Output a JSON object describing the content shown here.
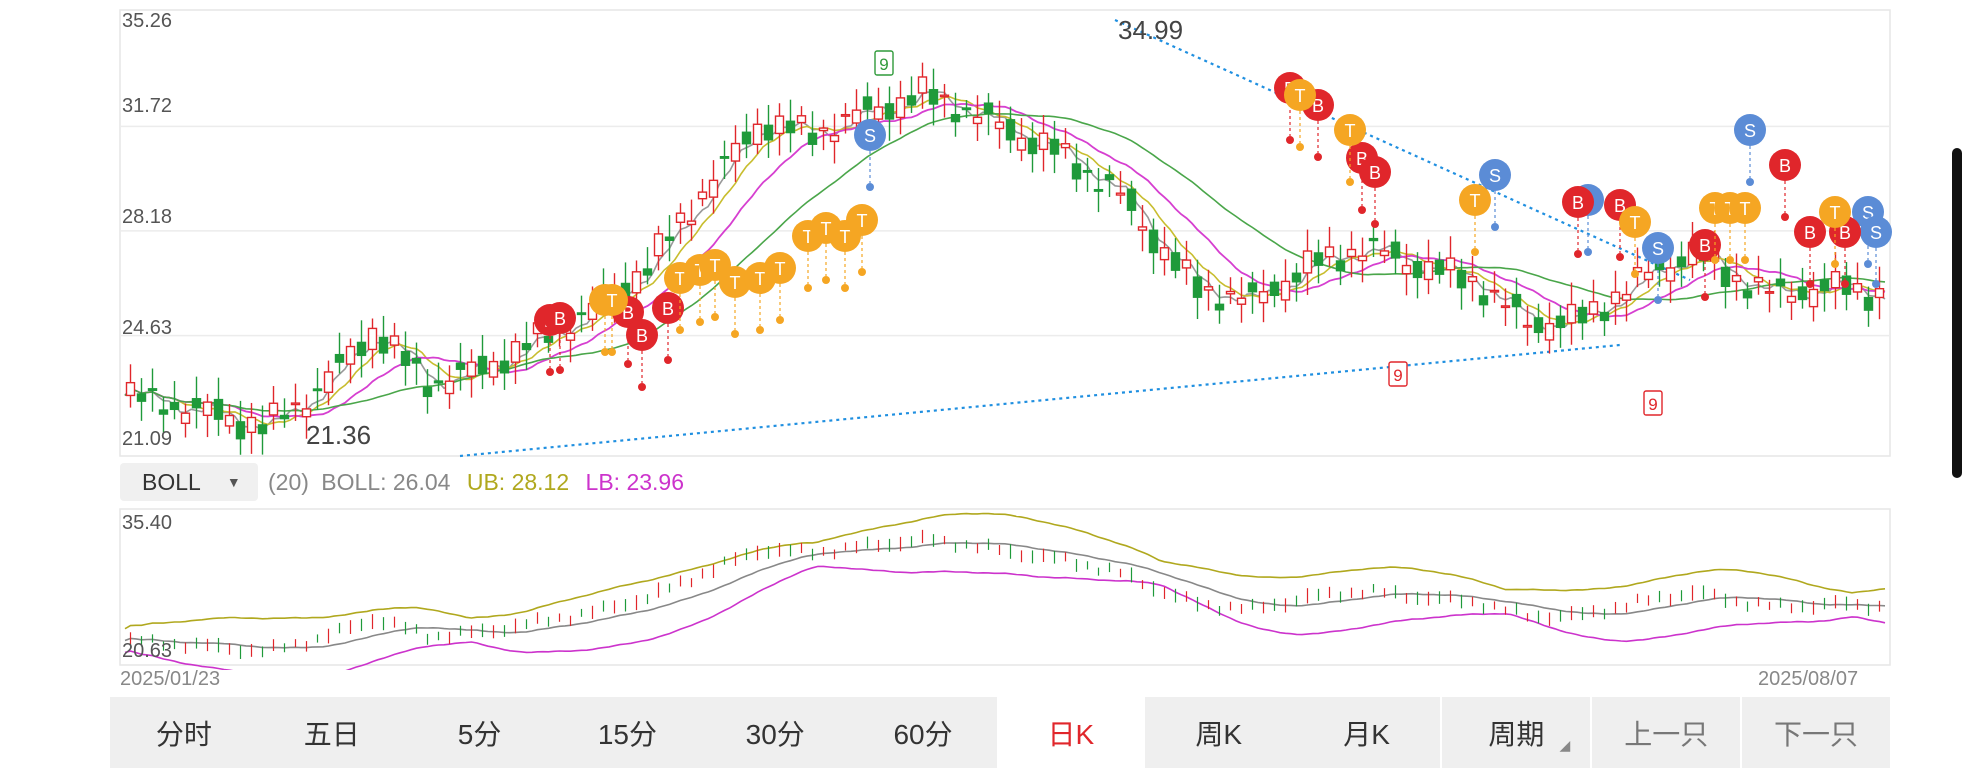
{
  "main_chart": {
    "y_ticks": [
      "35.26",
      "31.72",
      "28.18",
      "24.63",
      "21.09"
    ],
    "high_label": "34.99",
    "low_label": "21.36",
    "colors": {
      "up": "#e0262b",
      "down": "#1f9a3a",
      "ma5": "#999999",
      "ma10": "#c8bd2e",
      "ma20": "#d63fd0",
      "ma60": "#4aa64a",
      "trend": "#1f8fe0",
      "buy": "#e0262b",
      "sell": "#5b8cd6",
      "top": "#f5a623"
    }
  },
  "indicator": {
    "name": "BOLL",
    "param": "(20)",
    "boll_label": "BOLL: 26.04",
    "ub_label": "UB: 28.12",
    "lb_label": "LB: 23.96",
    "colors": {
      "boll": "#888888",
      "ub": "#b0a81e",
      "lb": "#cc33cc"
    }
  },
  "sub_chart": {
    "y_top": "35.40",
    "y_bottom": "20.63"
  },
  "dates": {
    "start": "2025/01/23",
    "end": "2025/08/07"
  },
  "tabs": [
    {
      "label": "分时"
    },
    {
      "label": "五日"
    },
    {
      "label": "5分"
    },
    {
      "label": "15分"
    },
    {
      "label": "30分"
    },
    {
      "label": "60分"
    },
    {
      "label": "日K",
      "active": true
    },
    {
      "label": "周K"
    },
    {
      "label": "月K"
    },
    {
      "label": "周期"
    },
    {
      "label": "上一只"
    },
    {
      "label": "下一只"
    }
  ],
  "signals": {
    "nine": "9",
    "labels": {
      "buy": "B",
      "sell": "S",
      "top": "T"
    }
  }
}
